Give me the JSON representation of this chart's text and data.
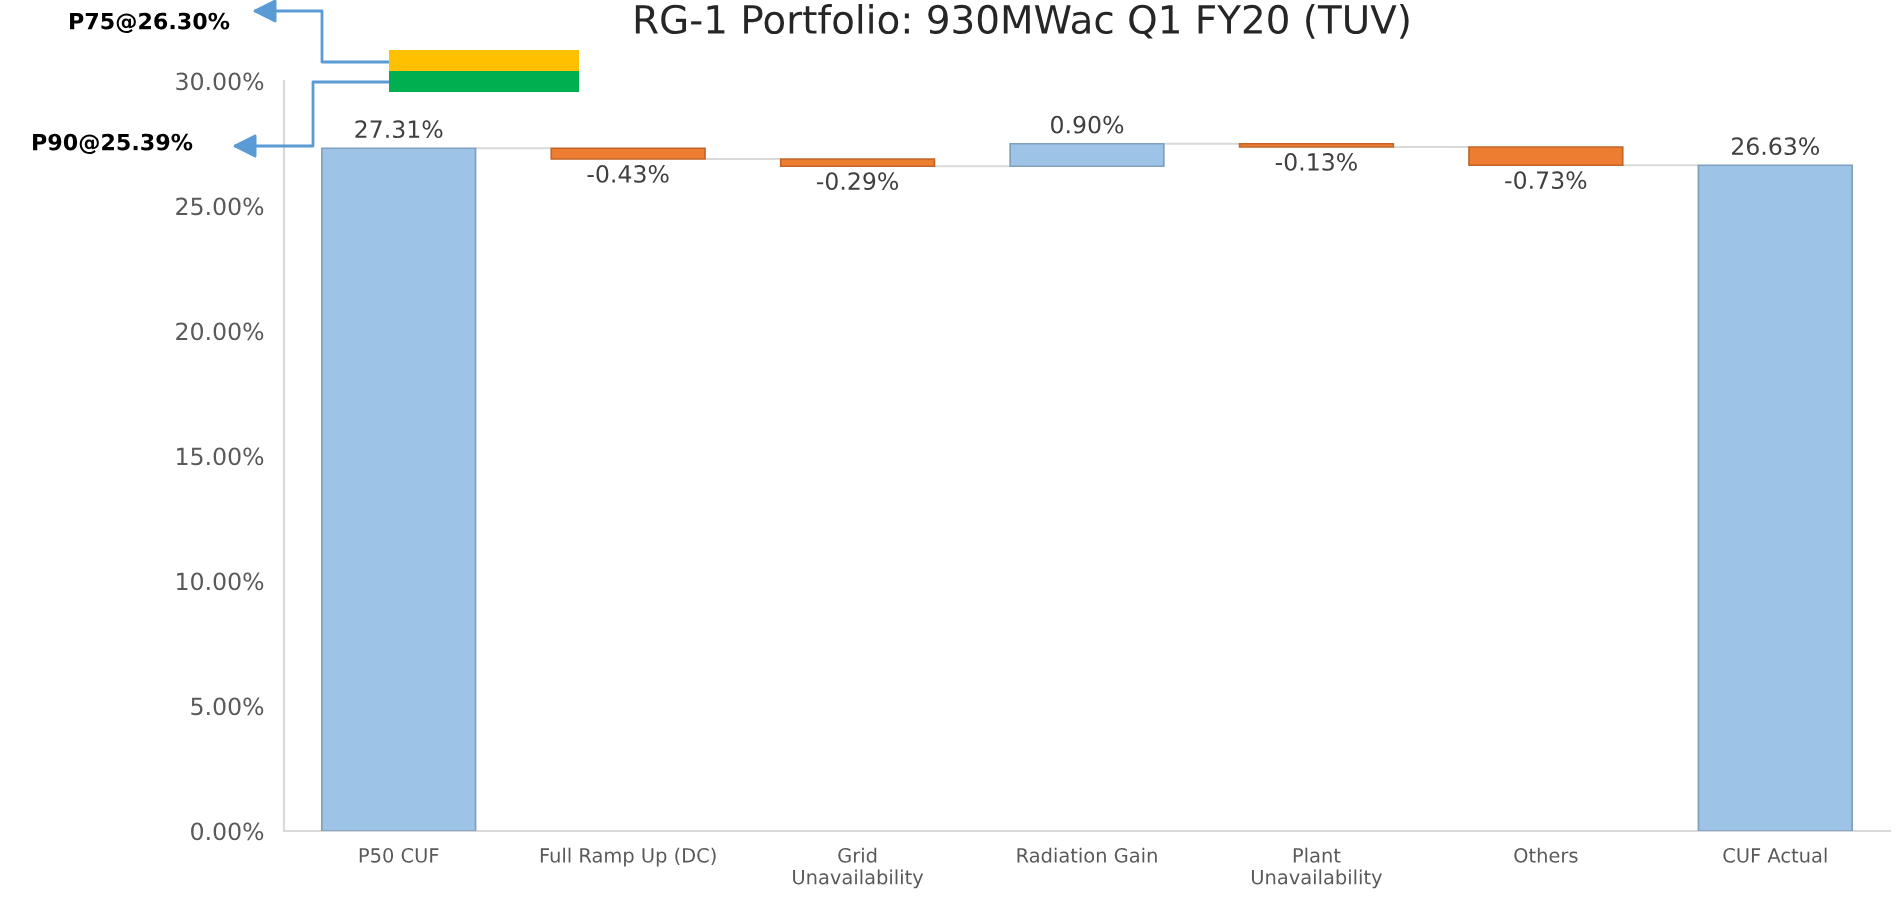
{
  "chart_data": {
    "type": "bar",
    "title": "RG-1 Portfolio: 930MWac Q1 FY20 (TUV)",
    "categories": [
      "P50 CUF",
      "Full Ramp Up (DC)",
      "Grid\nUnavailability",
      "Radiation Gain",
      "Plant\nUnavailability",
      "Others",
      "CUF Actual"
    ],
    "values": [
      27.31,
      -0.43,
      -0.29,
      0.9,
      -0.13,
      -0.73,
      26.63
    ],
    "base": [
      0,
      27.31,
      26.88,
      26.59,
      27.49,
      27.36,
      0
    ],
    "colors": [
      "#9dc3e6",
      "#ed7d31",
      "#ed7d31",
      "#9dc3e6",
      "#ed7d31",
      "#ed7d31",
      "#9dc3e6"
    ],
    "value_labels": [
      "27.31%",
      "-0.43%",
      "-0.29%",
      "0.90%",
      "-0.13%",
      "-0.73%",
      "26.63%"
    ],
    "ylim": [
      0,
      30
    ],
    "yticks": [
      {
        "value": 0,
        "label": "0.00%"
      },
      {
        "value": 5,
        "label": "5.00%"
      },
      {
        "value": 10,
        "label": "10.00%"
      },
      {
        "value": 15,
        "label": "15.00%"
      },
      {
        "value": 20,
        "label": "20.00%"
      },
      {
        "value": 25,
        "label": "25.00%"
      },
      {
        "value": 30,
        "label": "30.00%"
      }
    ],
    "annotations": [
      "P75@26.30%",
      "P90@25.39%"
    ]
  }
}
